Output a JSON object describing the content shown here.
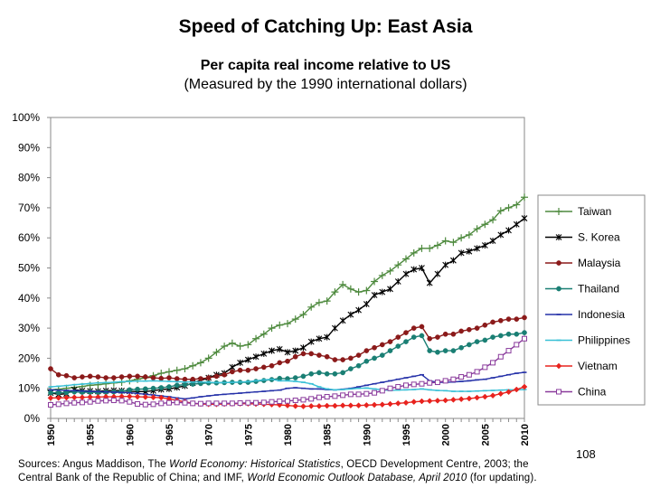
{
  "header": {
    "title": "Speed of Catching Up: East Asia",
    "subtitle_line1": "Per capita real income relative to US",
    "subtitle_line2": "(Measured by the 1990 international dollars)"
  },
  "footer": {
    "page_number": "108",
    "sources_a": "Sources: Angus Maddison, The ",
    "sources_b": "World Economy: Historical Statistics",
    "sources_c": ", OECD Development Centre, 2003; the",
    "sources_d": "Central Bank of the Republic of China; and IMF, ",
    "sources_e": "World Economic Outlook Database, April 2010",
    "sources_f": " (for updating)."
  },
  "chart_data": {
    "type": "line",
    "x": [
      1950,
      1951,
      1952,
      1953,
      1954,
      1955,
      1956,
      1957,
      1958,
      1959,
      1960,
      1961,
      1962,
      1963,
      1964,
      1965,
      1966,
      1967,
      1968,
      1969,
      1970,
      1971,
      1972,
      1973,
      1974,
      1975,
      1976,
      1977,
      1978,
      1979,
      1980,
      1981,
      1982,
      1983,
      1984,
      1985,
      1986,
      1987,
      1988,
      1989,
      1990,
      1991,
      1992,
      1993,
      1994,
      1995,
      1996,
      1997,
      1998,
      1999,
      2000,
      2001,
      2002,
      2003,
      2004,
      2005,
      2006,
      2007,
      2008,
      2009,
      2010
    ],
    "xticks": [
      "1950",
      "1955",
      "1960",
      "1965",
      "1970",
      "1975",
      "1980",
      "1985",
      "1990",
      "1995",
      "2000",
      "2005",
      "2010"
    ],
    "yticks": [
      "0%",
      "10%",
      "20%",
      "30%",
      "40%",
      "50%",
      "60%",
      "70%",
      "80%",
      "90%",
      "100%"
    ],
    "ylim": [
      0,
      100
    ],
    "y_unit": "%",
    "grid": false,
    "legend_position": "right",
    "series": [
      {
        "name": "Taiwan",
        "color": "#4e8a3e",
        "marker": "plus",
        "values": [
          9.5,
          9.7,
          10,
          10.3,
          10.6,
          11,
          11.2,
          11.5,
          11.8,
          12,
          12.5,
          13,
          13.5,
          14.2,
          15,
          15.5,
          16,
          16.5,
          17.5,
          18.5,
          20,
          22,
          24,
          25,
          24,
          24.5,
          26.5,
          28,
          30,
          31,
          31.5,
          33,
          34.5,
          37,
          38.5,
          39,
          42,
          44.5,
          43,
          42,
          42.5,
          45.5,
          47.5,
          49,
          51,
          53,
          55,
          56.5,
          56.5,
          57.5,
          59,
          58.5,
          60,
          61,
          63,
          64.5,
          66,
          69,
          70,
          71,
          73.5
        ]
      },
      {
        "name": "S. Korea",
        "color": "#000000",
        "marker": "star",
        "values": [
          8.5,
          8,
          8.2,
          9.5,
          9.2,
          9.1,
          9,
          9.2,
          9.3,
          9.2,
          9,
          8.9,
          8.9,
          9.2,
          9.6,
          9.8,
          10.3,
          10.8,
          11.8,
          12.6,
          13.5,
          14.5,
          15,
          17,
          18.5,
          19.5,
          20.5,
          21.5,
          22.5,
          23,
          22,
          22.5,
          23.5,
          25.5,
          26.5,
          27,
          30,
          32.5,
          34.5,
          36,
          38,
          41,
          42,
          43,
          45.5,
          48,
          49.5,
          50,
          45,
          48,
          51,
          52.5,
          55,
          55.5,
          56.5,
          57.5,
          59,
          61,
          62.5,
          64.5,
          66.5
        ]
      },
      {
        "name": "Malaysia",
        "color": "#8b1a1a",
        "marker": "circle",
        "values": [
          16.5,
          14.5,
          14.2,
          13.5,
          13.8,
          14,
          13.8,
          13.5,
          13.5,
          13.8,
          14,
          14,
          13.8,
          13.5,
          13.3,
          13.5,
          13.2,
          13,
          13,
          13.2,
          13.5,
          14,
          14.5,
          15.5,
          16,
          16,
          16.5,
          17,
          17.5,
          18.5,
          19,
          20.5,
          21.5,
          21.5,
          21,
          20.5,
          19.5,
          19.5,
          20,
          21,
          22.5,
          23.5,
          24.5,
          25.5,
          27,
          28.5,
          30,
          30.5,
          26.5,
          27,
          28,
          28,
          29,
          29.5,
          30,
          31,
          32,
          32.5,
          33,
          33,
          33.5
        ]
      },
      {
        "name": "Thailand",
        "color": "#1a7f74",
        "marker": "circle",
        "values": [
          8.5,
          8.5,
          8.6,
          8.8,
          8.7,
          8.7,
          8.6,
          8.7,
          8.8,
          9,
          9.5,
          9.7,
          9.8,
          10,
          10.2,
          10.5,
          11,
          11.2,
          11.4,
          11.6,
          11.8,
          11.8,
          11.9,
          12,
          12,
          12,
          12.3,
          12.6,
          12.9,
          13.3,
          13.2,
          13.5,
          14,
          14.8,
          15.2,
          14.8,
          14.8,
          15.2,
          16.5,
          17.5,
          19,
          20,
          21,
          22.5,
          24,
          25.5,
          27,
          27.5,
          22.5,
          22,
          22.5,
          22.5,
          23.5,
          24.5,
          25.5,
          26,
          27,
          27.5,
          28,
          28,
          28.5
        ]
      },
      {
        "name": "Indonesia",
        "color": "#2430a8",
        "marker": "dash",
        "values": [
          9.5,
          9.4,
          9.3,
          9.2,
          9.1,
          9,
          8.9,
          8.8,
          8.7,
          8.6,
          8.5,
          8.3,
          8,
          7.8,
          7.5,
          7.2,
          6.8,
          6.5,
          6.8,
          7.2,
          7.5,
          7.8,
          8,
          8.2,
          8.4,
          8.6,
          8.8,
          9,
          9.2,
          9.4,
          10,
          10.2,
          10,
          9.8,
          9.8,
          9.6,
          9.5,
          9.7,
          10,
          10.5,
          11,
          11.5,
          12,
          12.5,
          13,
          13.5,
          14,
          14.5,
          12.5,
          12,
          12,
          12.1,
          12.3,
          12.5,
          12.8,
          13,
          13.5,
          14,
          14.5,
          15,
          15.3
        ]
      },
      {
        "name": "Philippines",
        "color": "#39c0d6",
        "marker": "dash",
        "values": [
          10.5,
          10.7,
          10.9,
          11.2,
          11.4,
          11.6,
          11.8,
          11.9,
          12,
          12.2,
          12.3,
          12.4,
          12.4,
          12.5,
          12.4,
          12.3,
          12.2,
          12.1,
          12.1,
          12.1,
          12,
          11.9,
          11.9,
          12,
          12.1,
          12.2,
          12.5,
          12.8,
          13,
          12.5,
          12.5,
          12.3,
          12,
          11.5,
          10.5,
          9.8,
          9.5,
          9.6,
          9.8,
          10,
          10.1,
          9.8,
          9.5,
          9.3,
          9.4,
          9.5,
          9.6,
          9.8,
          9.5,
          9.3,
          9.2,
          9,
          9,
          9,
          9.1,
          9.2,
          9.3,
          9.4,
          9.5,
          9.5,
          9.6
        ]
      },
      {
        "name": "Vietnam",
        "color": "#e8231e",
        "marker": "diamond",
        "values": [
          6.8,
          6.8,
          6.9,
          7,
          7,
          7.1,
          7.1,
          7.2,
          7.2,
          7.3,
          7.3,
          7.2,
          7.1,
          7,
          6.9,
          6.5,
          6,
          5.5,
          5,
          4.8,
          4.7,
          4.7,
          4.8,
          4.9,
          4.9,
          4.9,
          4.8,
          4.7,
          4.6,
          4.5,
          4.3,
          4.1,
          4,
          4.1,
          4.1,
          4.2,
          4.2,
          4.3,
          4.3,
          4.3,
          4.4,
          4.5,
          4.6,
          4.8,
          5,
          5.2,
          5.5,
          5.7,
          5.8,
          5.9,
          6,
          6.2,
          6.4,
          6.6,
          6.9,
          7.2,
          7.6,
          8.2,
          8.8,
          9.6,
          10.5
        ]
      },
      {
        "name": "China",
        "color": "#8a3b9c",
        "marker": "square",
        "values": [
          4.5,
          4.7,
          5,
          5.2,
          5.3,
          5.5,
          5.8,
          5.9,
          6,
          5.9,
          5.5,
          4.8,
          4.6,
          4.7,
          5,
          5.2,
          5.3,
          5.2,
          5,
          4.9,
          5,
          5,
          5,
          5,
          5.1,
          5.2,
          5.2,
          5.3,
          5.5,
          5.7,
          5.8,
          6,
          6.2,
          6.5,
          7,
          7.2,
          7.4,
          7.7,
          8,
          8,
          8.2,
          8.5,
          9.2,
          10,
          10.5,
          11,
          11.3,
          11.5,
          11.8,
          12,
          12.5,
          13,
          13.8,
          14.5,
          15.5,
          17,
          18.5,
          20.5,
          22.5,
          24.5,
          26.5
        ]
      }
    ]
  }
}
